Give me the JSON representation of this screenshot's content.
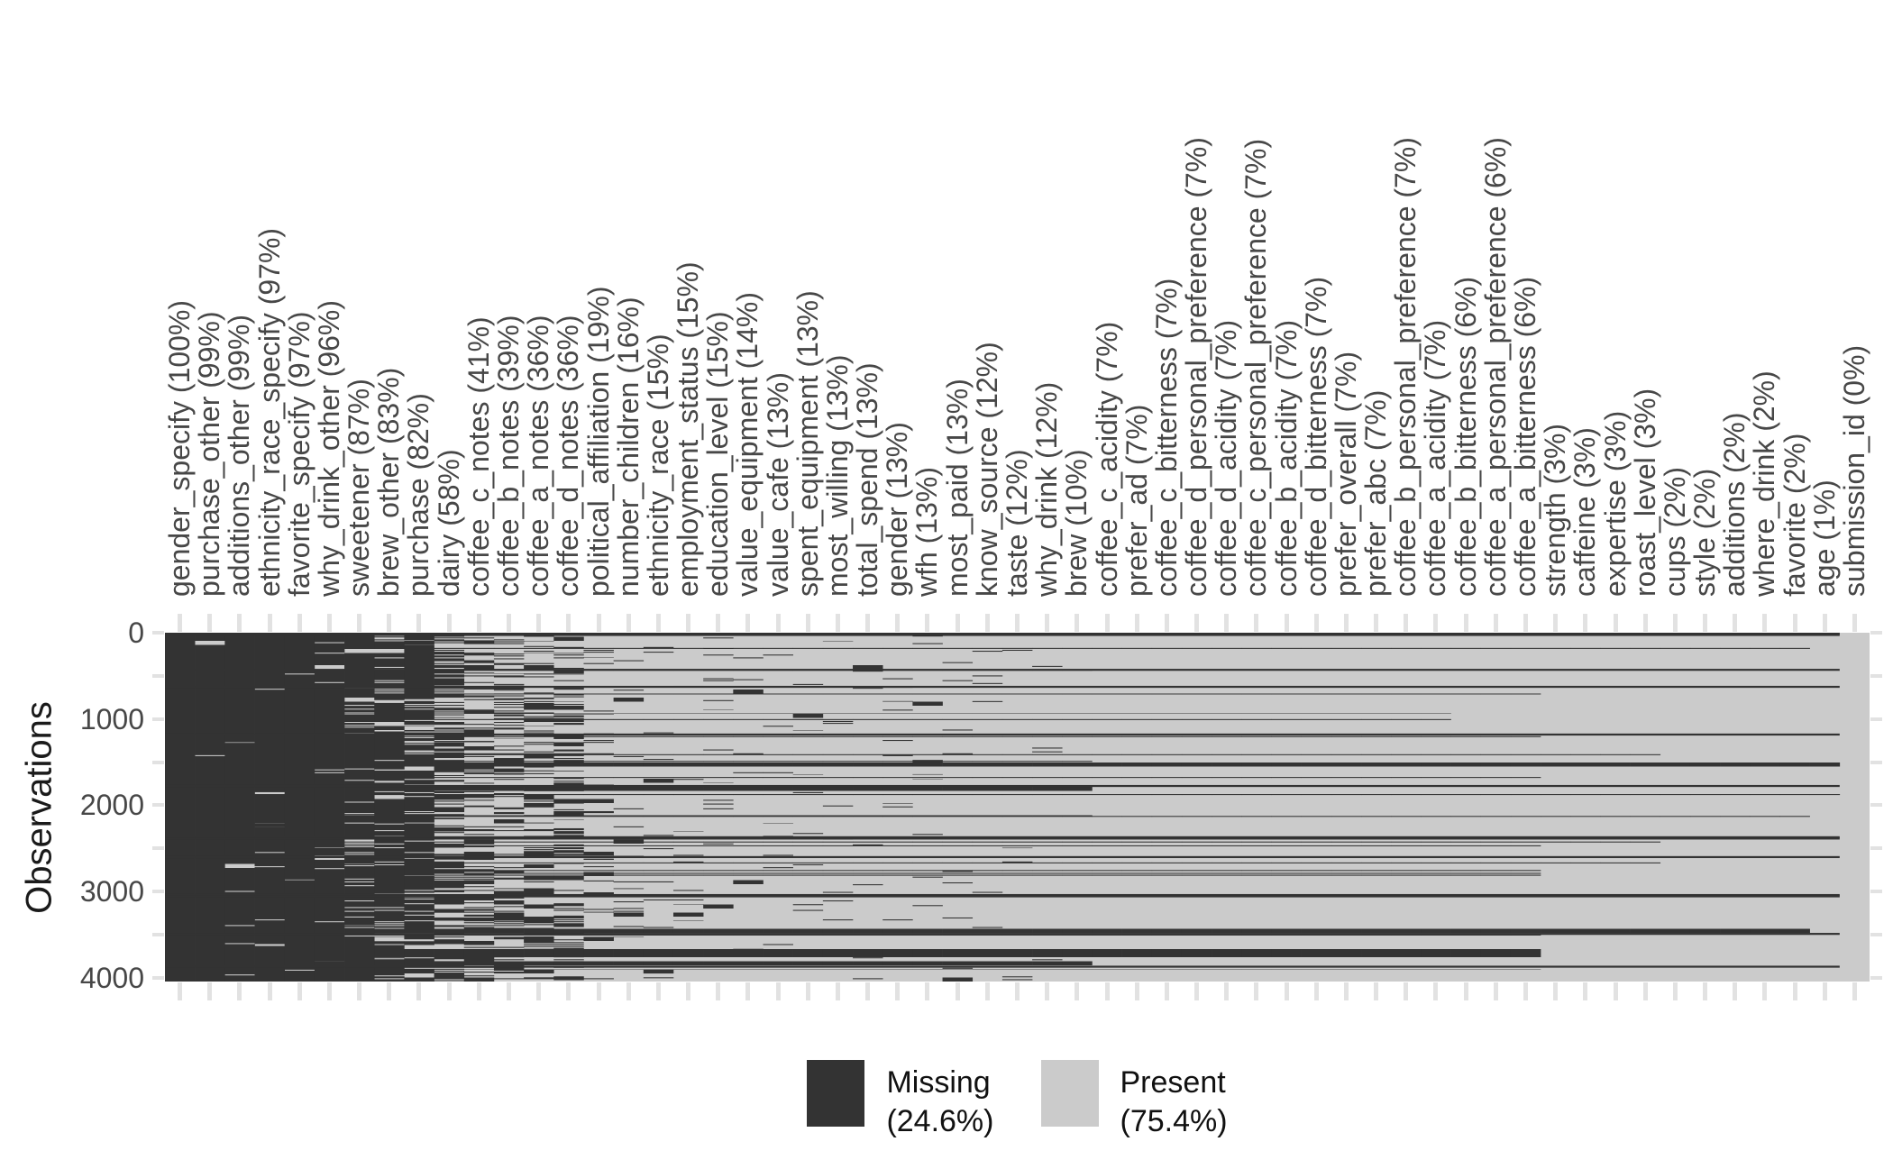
{
  "chart_data": {
    "type": "heatmap",
    "ylabel": "Observations",
    "y_ticks": [
      "0",
      "1000",
      "2000",
      "3000",
      "4000"
    ],
    "y_tick_values": [
      0,
      1000,
      2000,
      3000,
      4000
    ],
    "y_minor_step": 500,
    "n_rows": 4042,
    "grid": false,
    "legend_position": "bottom",
    "colors": {
      "missing": "#333333",
      "present": "#cbcbcb",
      "tick": "#e2e2e2",
      "axis_text": "#474747",
      "axis_title": "#1a1a1a"
    },
    "legend": [
      {
        "label": "Missing",
        "pct_label": "(24.6%)",
        "color": "#333333"
      },
      {
        "label": "Present",
        "pct_label": "(75.4%)",
        "color": "#cbcbcb"
      }
    ],
    "full_missing_rows": [
      3,
      14,
      26,
      430,
      627,
      1180,
      1776,
      2370,
      2385,
      2600,
      3040,
      3055,
      3490,
      3870
    ],
    "columns": [
      {
        "label": "gender_specify (100%)",
        "missing_pct": 100
      },
      {
        "label": "purchase_other (99%)",
        "missing_pct": 99
      },
      {
        "label": "additions_other (99%)",
        "missing_pct": 99
      },
      {
        "label": "ethnicity_race_specify (97%)",
        "missing_pct": 97
      },
      {
        "label": "favorite_specify (97%)",
        "missing_pct": 97
      },
      {
        "label": "why_drink_other (96%)",
        "missing_pct": 96
      },
      {
        "label": "sweetener (87%)",
        "missing_pct": 87
      },
      {
        "label": "brew_other (83%)",
        "missing_pct": 83
      },
      {
        "label": "purchase (82%)",
        "missing_pct": 82
      },
      {
        "label": "dairy (58%)",
        "missing_pct": 58
      },
      {
        "label": "coffee_c_notes (41%)",
        "missing_pct": 41
      },
      {
        "label": "coffee_b_notes (39%)",
        "missing_pct": 39
      },
      {
        "label": "coffee_a_notes (36%)",
        "missing_pct": 36
      },
      {
        "label": "coffee_d_notes (36%)",
        "missing_pct": 36
      },
      {
        "label": "political_affiliation (19%)",
        "missing_pct": 19
      },
      {
        "label": "number_children (16%)",
        "missing_pct": 16
      },
      {
        "label": "ethnicity_race (15%)",
        "missing_pct": 15
      },
      {
        "label": "employment_status (15%)",
        "missing_pct": 15
      },
      {
        "label": "education_level (15%)",
        "missing_pct": 15
      },
      {
        "label": "value_equipment (14%)",
        "missing_pct": 14
      },
      {
        "label": "value_cafe (13%)",
        "missing_pct": 13
      },
      {
        "label": "spent_equipment (13%)",
        "missing_pct": 13
      },
      {
        "label": "most_willing (13%)",
        "missing_pct": 13
      },
      {
        "label": "total_spend (13%)",
        "missing_pct": 13
      },
      {
        "label": "gender (13%)",
        "missing_pct": 13
      },
      {
        "label": "wfh (13%)",
        "missing_pct": 13
      },
      {
        "label": "most_paid (13%)",
        "missing_pct": 13
      },
      {
        "label": "know_source (12%)",
        "missing_pct": 12
      },
      {
        "label": "taste (12%)",
        "missing_pct": 12
      },
      {
        "label": "why_drink (12%)",
        "missing_pct": 12
      },
      {
        "label": "brew (10%)",
        "missing_pct": 10
      },
      {
        "label": "coffee_c_acidity (7%)",
        "missing_pct": 7
      },
      {
        "label": "prefer_ad (7%)",
        "missing_pct": 7
      },
      {
        "label": "coffee_c_bitterness (7%)",
        "missing_pct": 7
      },
      {
        "label": "coffee_d_personal_preference (7%)",
        "missing_pct": 7
      },
      {
        "label": "coffee_d_acidity (7%)",
        "missing_pct": 7
      },
      {
        "label": "coffee_c_personal_preference (7%)",
        "missing_pct": 7
      },
      {
        "label": "coffee_b_acidity (7%)",
        "missing_pct": 7
      },
      {
        "label": "coffee_d_bitterness (7%)",
        "missing_pct": 7
      },
      {
        "label": "prefer_overall (7%)",
        "missing_pct": 7
      },
      {
        "label": "prefer_abc (7%)",
        "missing_pct": 7
      },
      {
        "label": "coffee_b_personal_preference (7%)",
        "missing_pct": 7
      },
      {
        "label": "coffee_a_acidity (7%)",
        "missing_pct": 7
      },
      {
        "label": "coffee_b_bitterness (6%)",
        "missing_pct": 6
      },
      {
        "label": "coffee_a_personal_preference (6%)",
        "missing_pct": 6
      },
      {
        "label": "coffee_a_bitterness (6%)",
        "missing_pct": 6
      },
      {
        "label": "strength (3%)",
        "missing_pct": 3
      },
      {
        "label": "caffeine (3%)",
        "missing_pct": 3
      },
      {
        "label": "expertise (3%)",
        "missing_pct": 3
      },
      {
        "label": "roast_level (3%)",
        "missing_pct": 3
      },
      {
        "label": "cups (2%)",
        "missing_pct": 2
      },
      {
        "label": "style (2%)",
        "missing_pct": 2
      },
      {
        "label": "additions (2%)",
        "missing_pct": 2
      },
      {
        "label": "where_drink (2%)",
        "missing_pct": 2
      },
      {
        "label": "favorite (2%)",
        "missing_pct": 2
      },
      {
        "label": "age (1%)",
        "missing_pct": 1
      },
      {
        "label": "submission_id (0%)",
        "missing_pct": 0
      }
    ]
  }
}
